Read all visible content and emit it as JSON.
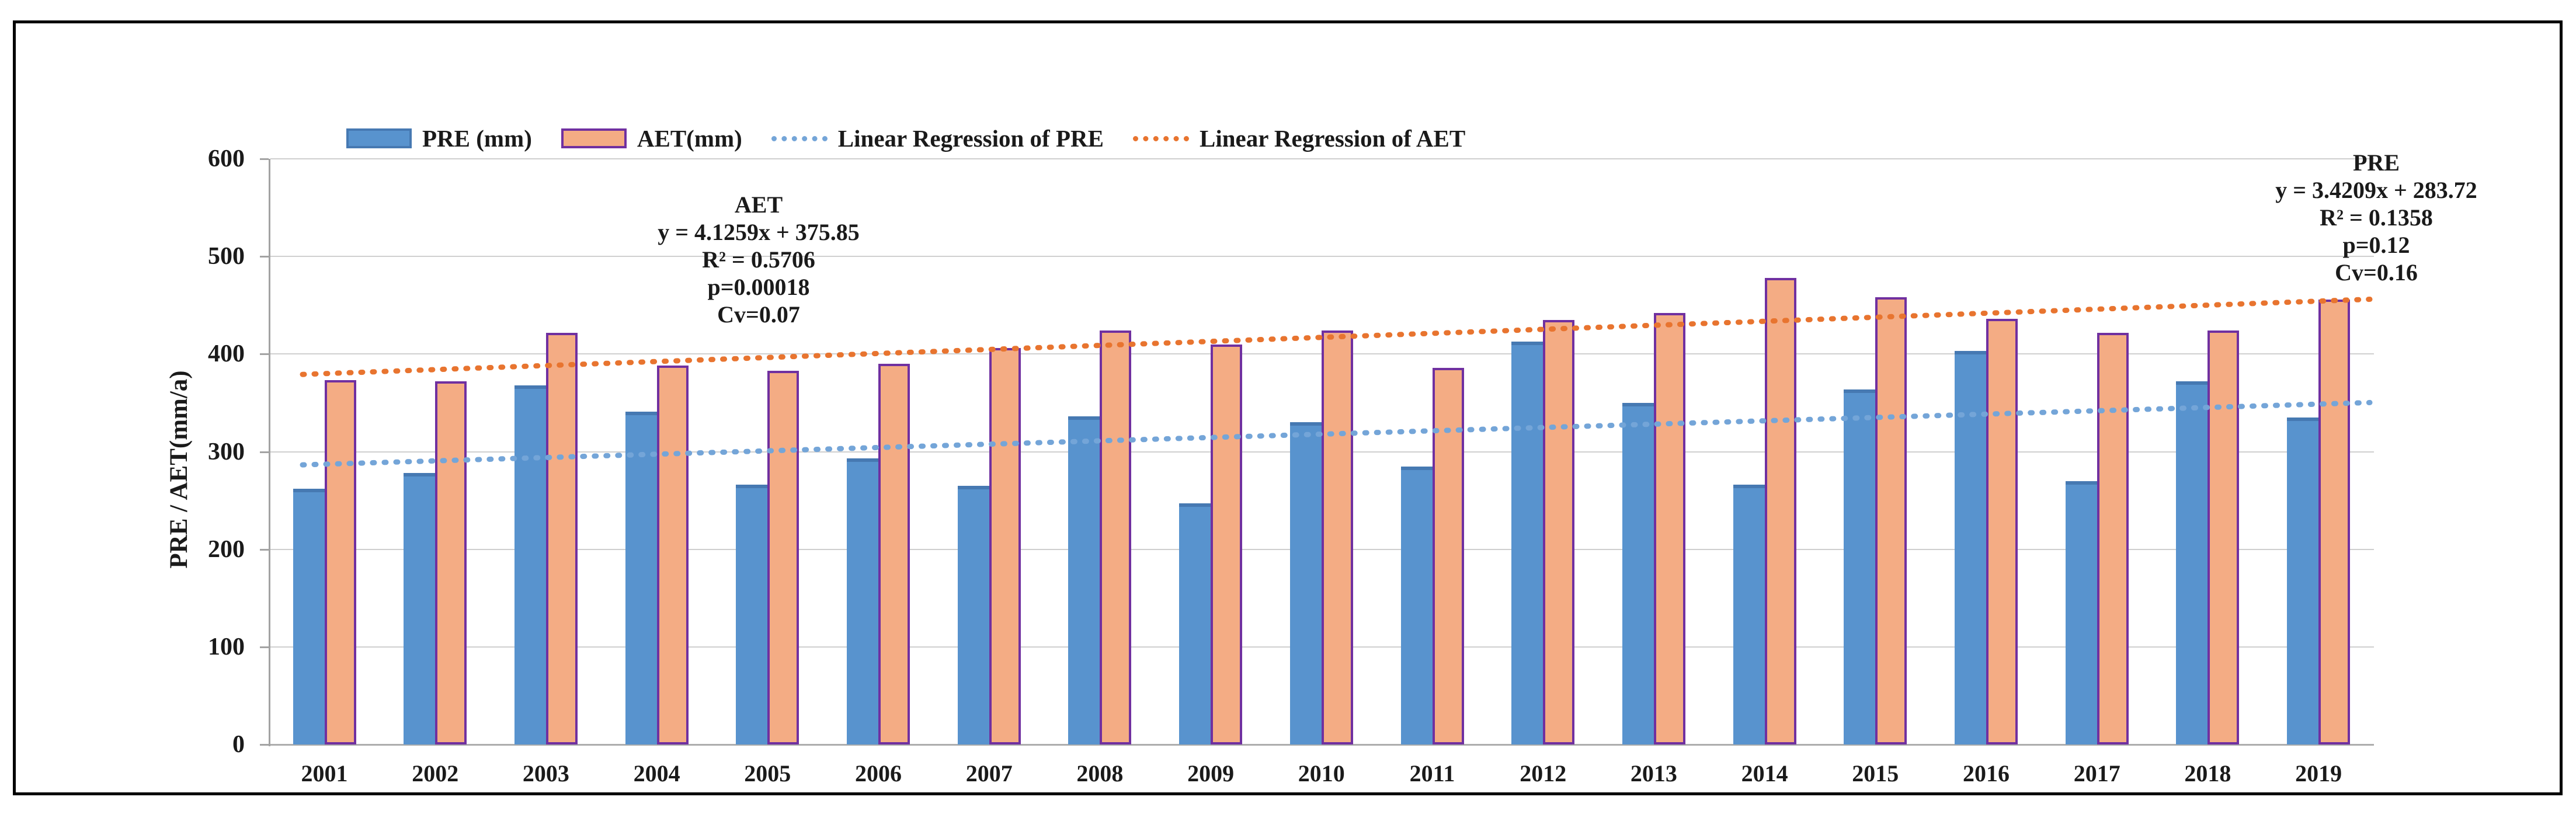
{
  "y_axis": {
    "title": "PRE / AET(mm/a)",
    "ticks": [
      0,
      100,
      200,
      300,
      400,
      500,
      600
    ]
  },
  "x_axis": {
    "labels": [
      "2001",
      "2002",
      "2003",
      "2004",
      "2005",
      "2006",
      "2007",
      "2008",
      "2009",
      "2010",
      "2011",
      "2012",
      "2013",
      "2014",
      "2015",
      "2016",
      "2017",
      "2018",
      "2019"
    ]
  },
  "legend": {
    "items": [
      {
        "type": "bar",
        "label": "PRE (mm)",
        "color": "#5893ce",
        "border": "#4679b2"
      },
      {
        "type": "bar",
        "label": "AET(mm)",
        "color": "#f4ac84",
        "border": "#7030a0"
      },
      {
        "type": "dotted",
        "label": "Linear Regression of PRE",
        "color": "#74a5d8"
      },
      {
        "type": "dotted",
        "label": "Linear Regression of AET",
        "color": "#e8742f"
      }
    ]
  },
  "annotations": {
    "aet": {
      "lines": [
        "AET",
        "y = 4.1259x + 375.85",
        "R² = 0.5706",
        "p=0.00018",
        "Cv=0.07"
      ]
    },
    "pre": {
      "lines": [
        "PRE",
        "y = 3.4209x + 283.72",
        "R² = 0.1358",
        "p=0.12",
        "Cv=0.16"
      ]
    }
  },
  "colors": {
    "pre_bar": "#5893ce",
    "pre_bar_top": "#4679b2",
    "aet_bar": "#f4ac84",
    "aet_border": "#7030a0",
    "pre_regression": "#74a5d8",
    "aet_regression": "#e8742f",
    "gridline": "#cfcfcf",
    "axis": "#a3a3a3",
    "frame": "#000000"
  },
  "chart_data": {
    "type": "bar",
    "categories": [
      "2001",
      "2002",
      "2003",
      "2004",
      "2005",
      "2006",
      "2007",
      "2008",
      "2009",
      "2010",
      "2011",
      "2012",
      "2013",
      "2014",
      "2015",
      "2016",
      "2017",
      "2018",
      "2019"
    ],
    "series": [
      {
        "name": "PRE (mm)",
        "color": "#5893ce",
        "values": [
          262,
          278,
          368,
          341,
          266,
          293,
          265,
          336,
          247,
          330,
          285,
          413,
          350,
          266,
          364,
          403,
          270,
          372,
          335
        ]
      },
      {
        "name": "AET(mm)",
        "color": "#f4ac84",
        "border_color": "#7030a0",
        "values": [
          373,
          372,
          422,
          388,
          383,
          390,
          406,
          424,
          410,
          424,
          386,
          435,
          442,
          478,
          458,
          436,
          422,
          424,
          456
        ]
      }
    ],
    "regressions": [
      {
        "name": "Linear Regression of PRE",
        "equation": "y = 3.4209x + 283.72",
        "slope": 3.4209,
        "intercept": 283.72,
        "r2": 0.1358,
        "p": 0.12,
        "cv": 0.16,
        "color": "#74a5d8"
      },
      {
        "name": "Linear Regression of AET",
        "equation": "y = 4.1259x + 375.85",
        "slope": 4.1259,
        "intercept": 375.85,
        "r2": 0.5706,
        "p": 0.00018,
        "cv": 0.07,
        "color": "#e8742f"
      }
    ],
    "title": "",
    "xlabel": "",
    "ylabel": "PRE / AET(mm/a)",
    "ylim": [
      0,
      600
    ],
    "grid": true,
    "legend_position": "top"
  }
}
